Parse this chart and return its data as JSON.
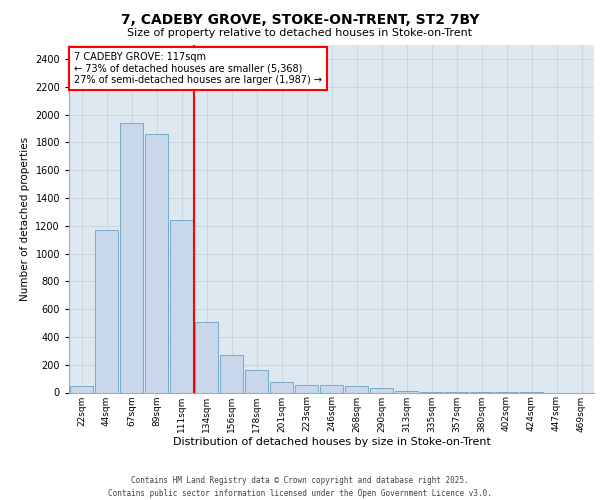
{
  "title_line1": "7, CADEBY GROVE, STOKE-ON-TRENT, ST2 7BY",
  "title_line2": "Size of property relative to detached houses in Stoke-on-Trent",
  "xlabel": "Distribution of detached houses by size in Stoke-on-Trent",
  "ylabel": "Number of detached properties",
  "categories": [
    "22sqm",
    "44sqm",
    "67sqm",
    "89sqm",
    "111sqm",
    "134sqm",
    "156sqm",
    "178sqm",
    "201sqm",
    "223sqm",
    "246sqm",
    "268sqm",
    "290sqm",
    "313sqm",
    "335sqm",
    "357sqm",
    "380sqm",
    "402sqm",
    "424sqm",
    "447sqm",
    "469sqm"
  ],
  "values": [
    50,
    1170,
    1940,
    1860,
    1240,
    510,
    270,
    160,
    75,
    55,
    55,
    50,
    30,
    10,
    5,
    2,
    2,
    1,
    1,
    0,
    0
  ],
  "bar_color": "#c8d8ea",
  "bar_edge_color": "#7aaac8",
  "vline_x": 4.5,
  "vline_color": "red",
  "annotation_text": "7 CADEBY GROVE: 117sqm\n← 73% of detached houses are smaller (5,368)\n27% of semi-detached houses are larger (1,987) →",
  "annotation_box_color": "white",
  "annotation_box_edge": "red",
  "ylim": [
    0,
    2500
  ],
  "yticks": [
    0,
    200,
    400,
    600,
    800,
    1000,
    1200,
    1400,
    1600,
    1800,
    2000,
    2200,
    2400
  ],
  "grid_color": "#ccd6e0",
  "bg_color": "#dde8f0",
  "fig_bg_color": "#ffffff",
  "footer_line1": "Contains HM Land Registry data © Crown copyright and database right 2025.",
  "footer_line2": "Contains public sector information licensed under the Open Government Licence v3.0."
}
